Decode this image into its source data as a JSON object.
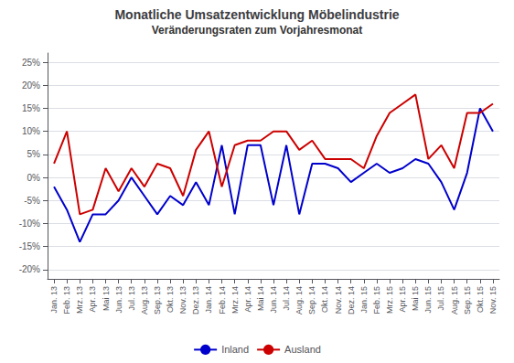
{
  "chart_data": {
    "type": "line",
    "title": "Monatliche Umsatzentwicklung Möbelindustrie",
    "subtitle": "Veränderungsraten zum Vorjahresmonat",
    "categories": [
      "Jan. 13",
      "Feb. 13",
      "Mrz. 13",
      "Apr. 13",
      "Mai 13",
      "Jun. 13",
      "Jul. 13",
      "Aug. 13",
      "Sep. 13",
      "Okt. 13",
      "Nov. 13",
      "Dez. 13",
      "Jan. 14",
      "Feb. 14",
      "Mrz. 14",
      "Apr. 14",
      "Mai 14",
      "Jun. 14",
      "Jul. 14",
      "Aug. 14",
      "Sep. 14",
      "Okt. 14",
      "Nov. 14",
      "Dez. 14",
      "Jan. 15",
      "Feb. 15",
      "Mrz. 15",
      "Apr. 15",
      "Mai 15",
      "Jun. 15",
      "Jul. 15",
      "Aug. 15",
      "Sep. 15",
      "Okt. 15",
      "Nov. 15"
    ],
    "series": [
      {
        "name": "Inland",
        "color": "#0000cc",
        "values": [
          -0.02,
          -0.07,
          -0.14,
          -0.08,
          -0.08,
          -0.05,
          0.0,
          -0.04,
          -0.08,
          -0.04,
          -0.06,
          -0.01,
          -0.06,
          0.07,
          -0.08,
          0.07,
          0.07,
          -0.06,
          0.07,
          -0.08,
          0.03,
          0.03,
          0.02,
          -0.01,
          0.01,
          0.03,
          0.01,
          0.02,
          0.04,
          0.03,
          -0.01,
          -0.07,
          0.01,
          0.15,
          0.1
        ]
      },
      {
        "name": "Ausland",
        "color": "#cc0000",
        "values": [
          0.03,
          0.1,
          -0.08,
          -0.07,
          0.02,
          -0.03,
          0.02,
          -0.02,
          0.03,
          0.02,
          -0.04,
          0.06,
          0.1,
          -0.02,
          0.07,
          0.08,
          0.08,
          0.1,
          0.1,
          0.06,
          0.08,
          0.04,
          0.04,
          0.04,
          0.02,
          0.09,
          0.14,
          0.16,
          0.18,
          0.04,
          0.07,
          0.02,
          0.14,
          0.14,
          0.16
        ]
      }
    ],
    "ylim": [
      -0.22,
      0.27
    ],
    "yticks": [
      {
        "value": -0.2,
        "label": "-20%"
      },
      {
        "value": -0.15,
        "label": "-15%"
      },
      {
        "value": -0.1,
        "label": "-10%"
      },
      {
        "value": -0.05,
        "label": "-5%"
      },
      {
        "value": 0.0,
        "label": "0%"
      },
      {
        "value": 0.05,
        "label": "5%"
      },
      {
        "value": 0.1,
        "label": "10%"
      },
      {
        "value": 0.15,
        "label": "15%"
      },
      {
        "value": 0.2,
        "label": "20%"
      },
      {
        "value": 0.25,
        "label": "25%"
      }
    ],
    "grid": true,
    "legend": "bottom"
  }
}
